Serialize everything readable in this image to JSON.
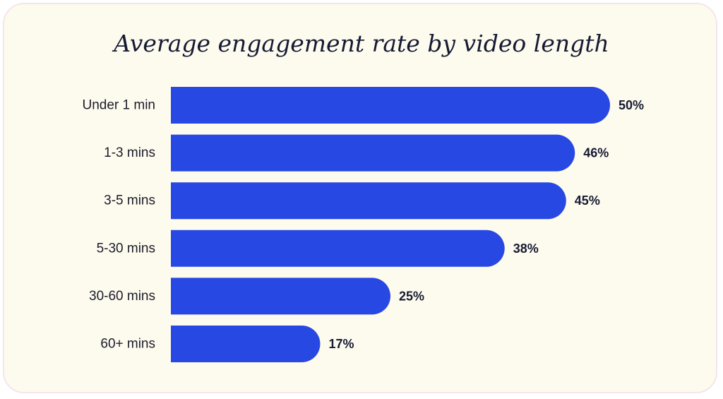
{
  "chart_data": {
    "type": "bar",
    "orientation": "horizontal",
    "title": "Average engagement rate by video length",
    "categories": [
      "Under 1 min",
      "1-3 mins",
      "3-5 mins",
      "5-30 mins",
      "30-60 mins",
      "60+ mins"
    ],
    "values": [
      50,
      46,
      45,
      38,
      25,
      17
    ],
    "value_labels": [
      "50%",
      "46%",
      "45%",
      "38%",
      "25%",
      "17%"
    ],
    "unit": "%",
    "xlim": [
      0,
      50
    ],
    "grid": false,
    "legend": "none",
    "bar_color": "#2848e3",
    "background_color": "#fdfbee"
  }
}
